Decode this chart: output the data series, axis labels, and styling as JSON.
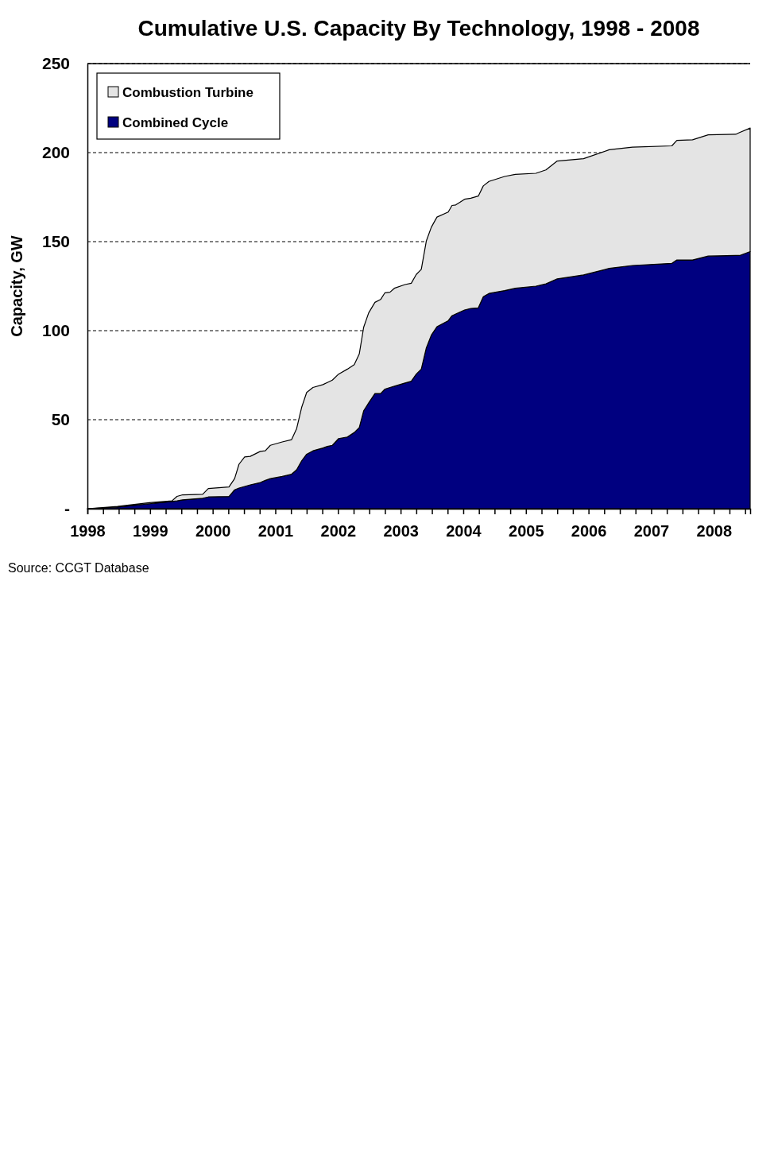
{
  "chart_data": {
    "type": "area",
    "stacked": true,
    "title": "Cumulative U.S. Capacity By Technology, 1998 - 2008",
    "ylabel": "Capacity, GW",
    "annotations": [
      "Source: CCGT Database"
    ],
    "x": [
      1998.0,
      1998.48,
      1998.99,
      1999.35,
      1999.43,
      1999.52,
      1999.84,
      1999.93,
      2000.26,
      2000.35,
      2000.42,
      2000.51,
      2000.6,
      2000.76,
      2000.84,
      2000.92,
      2001.11,
      2001.26,
      2001.34,
      2001.42,
      2001.5,
      2001.6,
      2001.76,
      2001.83,
      2001.91,
      2002.01,
      2002.15,
      2002.26,
      2002.34,
      2002.41,
      2002.49,
      2002.59,
      2002.68,
      2002.75,
      2002.83,
      2002.9,
      2003.07,
      2003.17,
      2003.25,
      2003.33,
      2003.41,
      2003.49,
      2003.58,
      2003.76,
      2003.82,
      2003.88,
      2004.02,
      2004.12,
      2004.24,
      2004.32,
      2004.41,
      2004.66,
      2004.83,
      2005.16,
      2005.32,
      2005.5,
      2005.92,
      2006.33,
      2006.7,
      2007.33,
      2007.41,
      2007.66,
      2007.91,
      2008.35,
      2008.41,
      2008.58
    ],
    "xlim": [
      1998,
      2008.58
    ],
    "xticks": [
      1998,
      {
        "value": 1998.25,
        "label": null
      },
      {
        "value": 1998.5,
        "label": null
      },
      {
        "value": 1998.75,
        "label": null
      },
      1999,
      {
        "value": 1999.25,
        "label": null
      },
      {
        "value": 1999.5,
        "label": null
      },
      {
        "value": 1999.75,
        "label": null
      },
      2000,
      {
        "value": 2000.25,
        "label": null
      },
      {
        "value": 2000.5,
        "label": null
      },
      {
        "value": 2000.75,
        "label": null
      },
      2001,
      {
        "value": 2001.25,
        "label": null
      },
      {
        "value": 2001.5,
        "label": null
      },
      {
        "value": 2001.75,
        "label": null
      },
      2002,
      {
        "value": 2002.25,
        "label": null
      },
      {
        "value": 2002.5,
        "label": null
      },
      {
        "value": 2002.75,
        "label": null
      },
      2003,
      {
        "value": 2003.25,
        "label": null
      },
      {
        "value": 2003.5,
        "label": null
      },
      {
        "value": 2003.75,
        "label": null
      },
      2004,
      {
        "value": 2004.25,
        "label": null
      },
      {
        "value": 2004.5,
        "label": null
      },
      {
        "value": 2004.75,
        "label": null
      },
      2005,
      {
        "value": 2005.25,
        "label": null
      },
      {
        "value": 2005.5,
        "label": null
      },
      {
        "value": 2005.75,
        "label": null
      },
      2006,
      {
        "value": 2006.25,
        "label": null
      },
      {
        "value": 2006.5,
        "label": null
      },
      {
        "value": 2006.75,
        "label": null
      },
      2007,
      {
        "value": 2007.25,
        "label": null
      },
      {
        "value": 2007.5,
        "label": null
      },
      {
        "value": 2007.75,
        "label": null
      },
      2008,
      {
        "value": 2008.25,
        "label": null
      },
      {
        "value": 2008.5,
        "label": null
      }
    ],
    "ylim": [
      0,
      250
    ],
    "yticks": [
      {
        "value": 0,
        "label": "-"
      },
      50,
      100,
      150,
      200,
      250
    ],
    "grid": "y",
    "legend": "top left",
    "series": [
      {
        "name": "Combined Cycle",
        "color": "#000080",
        "values": [
          0,
          0.9,
          2.8,
          4.1,
          4.4,
          5.0,
          5.9,
          6.6,
          6.9,
          10.6,
          11.6,
          12.5,
          13.4,
          14.7,
          15.9,
          16.9,
          18.1,
          19.4,
          21.9,
          26.9,
          30.6,
          32.5,
          34.1,
          35.0,
          35.6,
          39.4,
          40.3,
          42.8,
          45.6,
          55.0,
          59.4,
          64.7,
          64.7,
          67.2,
          68.1,
          68.8,
          70.6,
          71.6,
          75.6,
          78.4,
          90.3,
          97.5,
          102.2,
          105.6,
          108.4,
          109.4,
          111.6,
          112.5,
          112.8,
          119.1,
          120.9,
          122.5,
          123.8,
          125.0,
          126.3,
          129.1,
          131.3,
          135.0,
          136.6,
          137.8,
          139.7,
          139.7,
          141.9,
          142.2,
          142.2,
          144.4
        ]
      },
      {
        "name": "Combustion Turbine",
        "color": "#e4e4e4",
        "values": [
          0,
          0.4,
          0.6,
          0.3,
          2.5,
          2.8,
          2.2,
          4.7,
          5.3,
          6.3,
          13.4,
          16.6,
          16.0,
          17.5,
          16.6,
          18.7,
          19.4,
          19.4,
          23.1,
          30.0,
          34.7,
          35.6,
          35.6,
          35.9,
          36.6,
          36.2,
          38.1,
          38.1,
          41.3,
          46.9,
          50.6,
          51.2,
          52.8,
          54.1,
          53.5,
          55.0,
          55.3,
          55.0,
          56.0,
          56.0,
          60.0,
          60.6,
          61.6,
          61.0,
          61.9,
          61.2,
          62.2,
          61.9,
          62.8,
          62.2,
          62.9,
          64.1,
          64.0,
          63.4,
          64.0,
          66.2,
          65.3,
          66.6,
          66.5,
          66.0,
          67.2,
          67.5,
          68.1,
          68.1,
          69.1,
          69.4
        ]
      }
    ]
  }
}
